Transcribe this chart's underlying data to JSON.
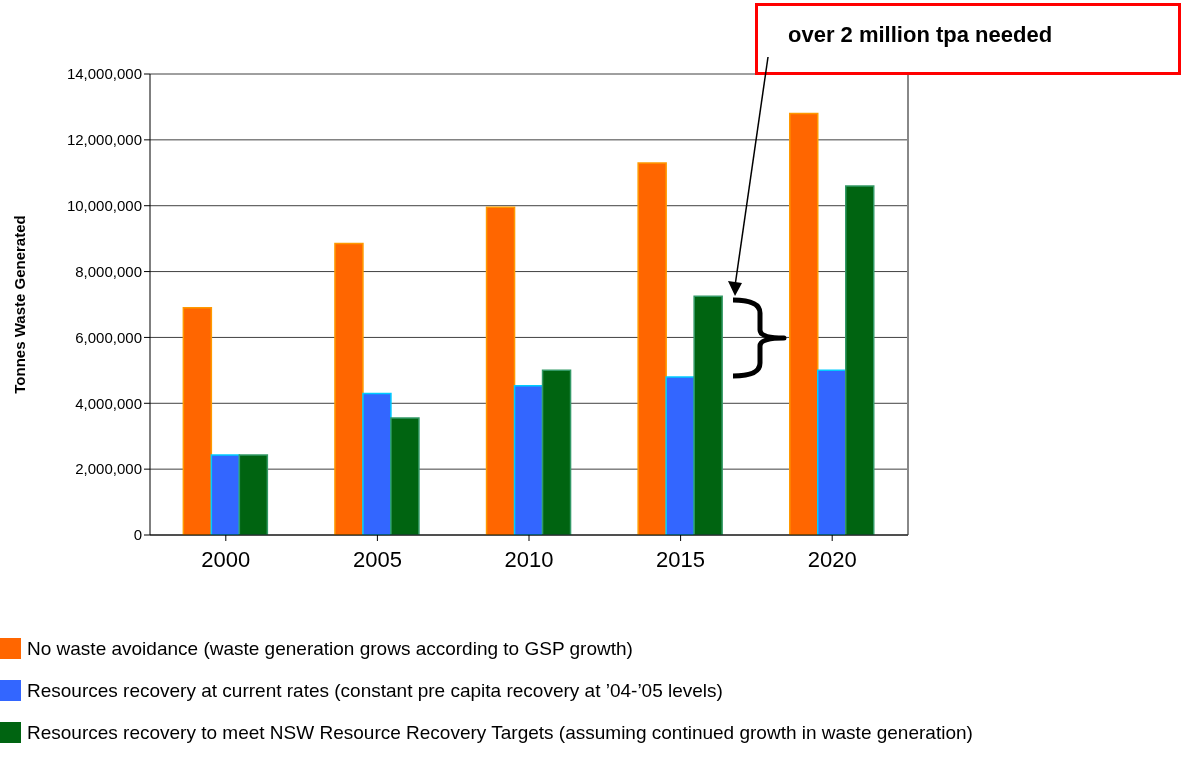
{
  "chart_data": {
    "type": "bar",
    "ylabel": "Tonnes Waste Generated",
    "categories": [
      "2000",
      "2005",
      "2010",
      "2015",
      "2020"
    ],
    "series": [
      {
        "name": "No waste avoidance (waste generation grows according to GSP growth)",
        "color": "#ff6600",
        "values": [
          6900000,
          8850000,
          9950000,
          11300000,
          12800000
        ]
      },
      {
        "name": "Resources recovery at current rates (constant pre capita recovery at ’04-’05 levels)",
        "color": "#3366ff",
        "values": [
          2430000,
          4300000,
          4530000,
          4800000,
          5000000
        ]
      },
      {
        "name": "Resources recovery to meet NSW Resource Recovery Targets (assuming continued growth in waste generation)",
        "color": "#006411",
        "values": [
          2430000,
          3550000,
          5000000,
          7250000,
          10600000
        ]
      }
    ],
    "ylim": [
      0,
      14000000
    ],
    "yticks": [
      {
        "value": 0,
        "label": "0"
      },
      {
        "value": 2000000,
        "label": "2,000,000"
      },
      {
        "value": 4000000,
        "label": "4,000,000"
      },
      {
        "value": 6000000,
        "label": "6,000,000"
      },
      {
        "value": 8000000,
        "label": "8,000,000"
      },
      {
        "value": 10000000,
        "label": "10,000,000"
      },
      {
        "value": 12000000,
        "label": "12,000,000"
      },
      {
        "value": 14000000,
        "label": "14,000,000"
      }
    ],
    "grid": "y",
    "legend": "bottom",
    "annotations": [
      "over 2 million tpa needed"
    ]
  }
}
